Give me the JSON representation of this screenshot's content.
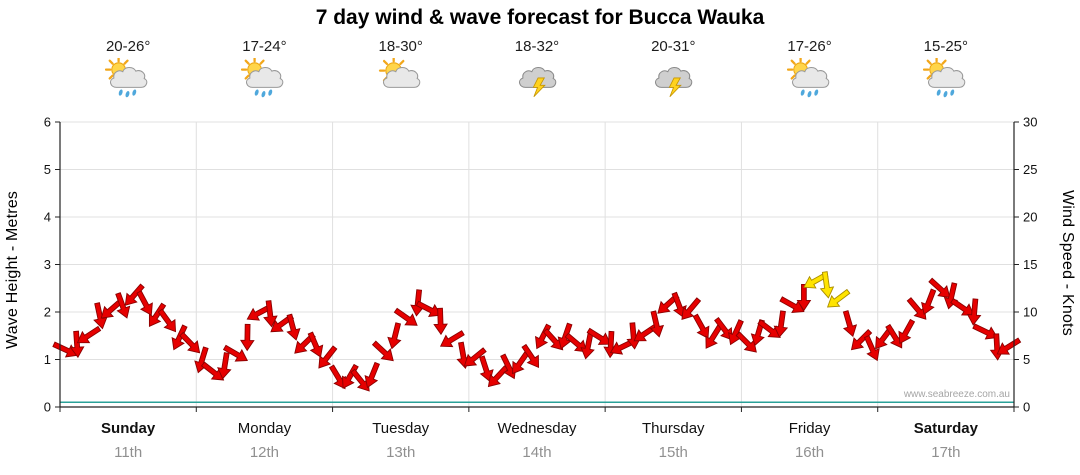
{
  "title": "7 day wind & wave forecast for Bucca Wauka",
  "watermark": "www.seabreeze.com.au",
  "left_axis": {
    "label": "Wave Height - Metres",
    "min": 0,
    "max": 6,
    "step": 1
  },
  "right_axis": {
    "label": "Wind Speed - Knots",
    "min": 0,
    "max": 30,
    "step": 5
  },
  "days": [
    {
      "name": "Sunday",
      "date": "11th",
      "temps": "20-26°",
      "icon": "sun-cloud-rain",
      "bold": true
    },
    {
      "name": "Monday",
      "date": "12th",
      "temps": "17-24°",
      "icon": "sun-cloud-rain",
      "bold": false
    },
    {
      "name": "Tuesday",
      "date": "13th",
      "temps": "18-30°",
      "icon": "sun-cloud",
      "bold": false
    },
    {
      "name": "Wednesday",
      "date": "14th",
      "temps": "18-32°",
      "icon": "thunderstorm",
      "bold": false
    },
    {
      "name": "Thursday",
      "date": "15th",
      "temps": "20-31°",
      "icon": "thunderstorm",
      "bold": false
    },
    {
      "name": "Friday",
      "date": "16th",
      "temps": "17-26°",
      "icon": "sun-cloud-rain",
      "bold": false
    },
    {
      "name": "Saturday",
      "date": "17th",
      "temps": "15-25°",
      "icon": "sun-cloud-rain",
      "bold": true
    }
  ],
  "chart_data": {
    "type": "scatter",
    "title": "7 day wind & wave forecast for Bucca Wauka",
    "categories": [
      "Sunday 11th",
      "Monday 12th",
      "Tuesday 13th",
      "Wednesday 14th",
      "Thursday 15th",
      "Friday 16th",
      "Saturday 17th"
    ],
    "ylabel_left": "Wave Height - Metres",
    "ylim_left": [
      0,
      6
    ],
    "ylabel_right": "Wind Speed - Knots",
    "ylim_right": [
      0,
      30
    ],
    "grid": true,
    "legend": false,
    "series": [
      {
        "name": "Wind speed & direction arrows",
        "units": "knots",
        "style": "wind-arrows",
        "points_per_day": 8,
        "knots": [
          5.5,
          7.5,
          9.5,
          11,
          11.5,
          10.5,
          8.5,
          6.5,
          4.5,
          3.5,
          6,
          9.5,
          10,
          8.5,
          6.5,
          5.5,
          3,
          2.5,
          4,
          7,
          10.5,
          11,
          8,
          6,
          4.5,
          3.5,
          4,
          5.5,
          7.5,
          7,
          6.5,
          7,
          6.5,
          7,
          8,
          10.5,
          11,
          8.5,
          7.5,
          8,
          7,
          8,
          9.5,
          11.5,
          13,
          12.5,
          7.5,
          6.5,
          7,
          8,
          10.5,
          12,
          11.5,
          10,
          7.5,
          6
        ],
        "strong_wind_indices": [
          44,
          45
        ]
      },
      {
        "name": "Wave height",
        "units": "metres",
        "style": "line",
        "values": [
          0.1,
          0.1,
          0.1,
          0.1,
          0.1,
          0.1,
          0.1
        ]
      }
    ]
  },
  "colors": {
    "arrow_red": "#e60000",
    "arrow_outline": "#8b0000",
    "arrow_strong": "#ffe400",
    "arrow_strong_outline": "#a98c00",
    "wave_line": "#2aa198",
    "grid": "#e0e0e0",
    "axis": "#222222",
    "day_text": "#111111",
    "date_text": "#909090"
  }
}
